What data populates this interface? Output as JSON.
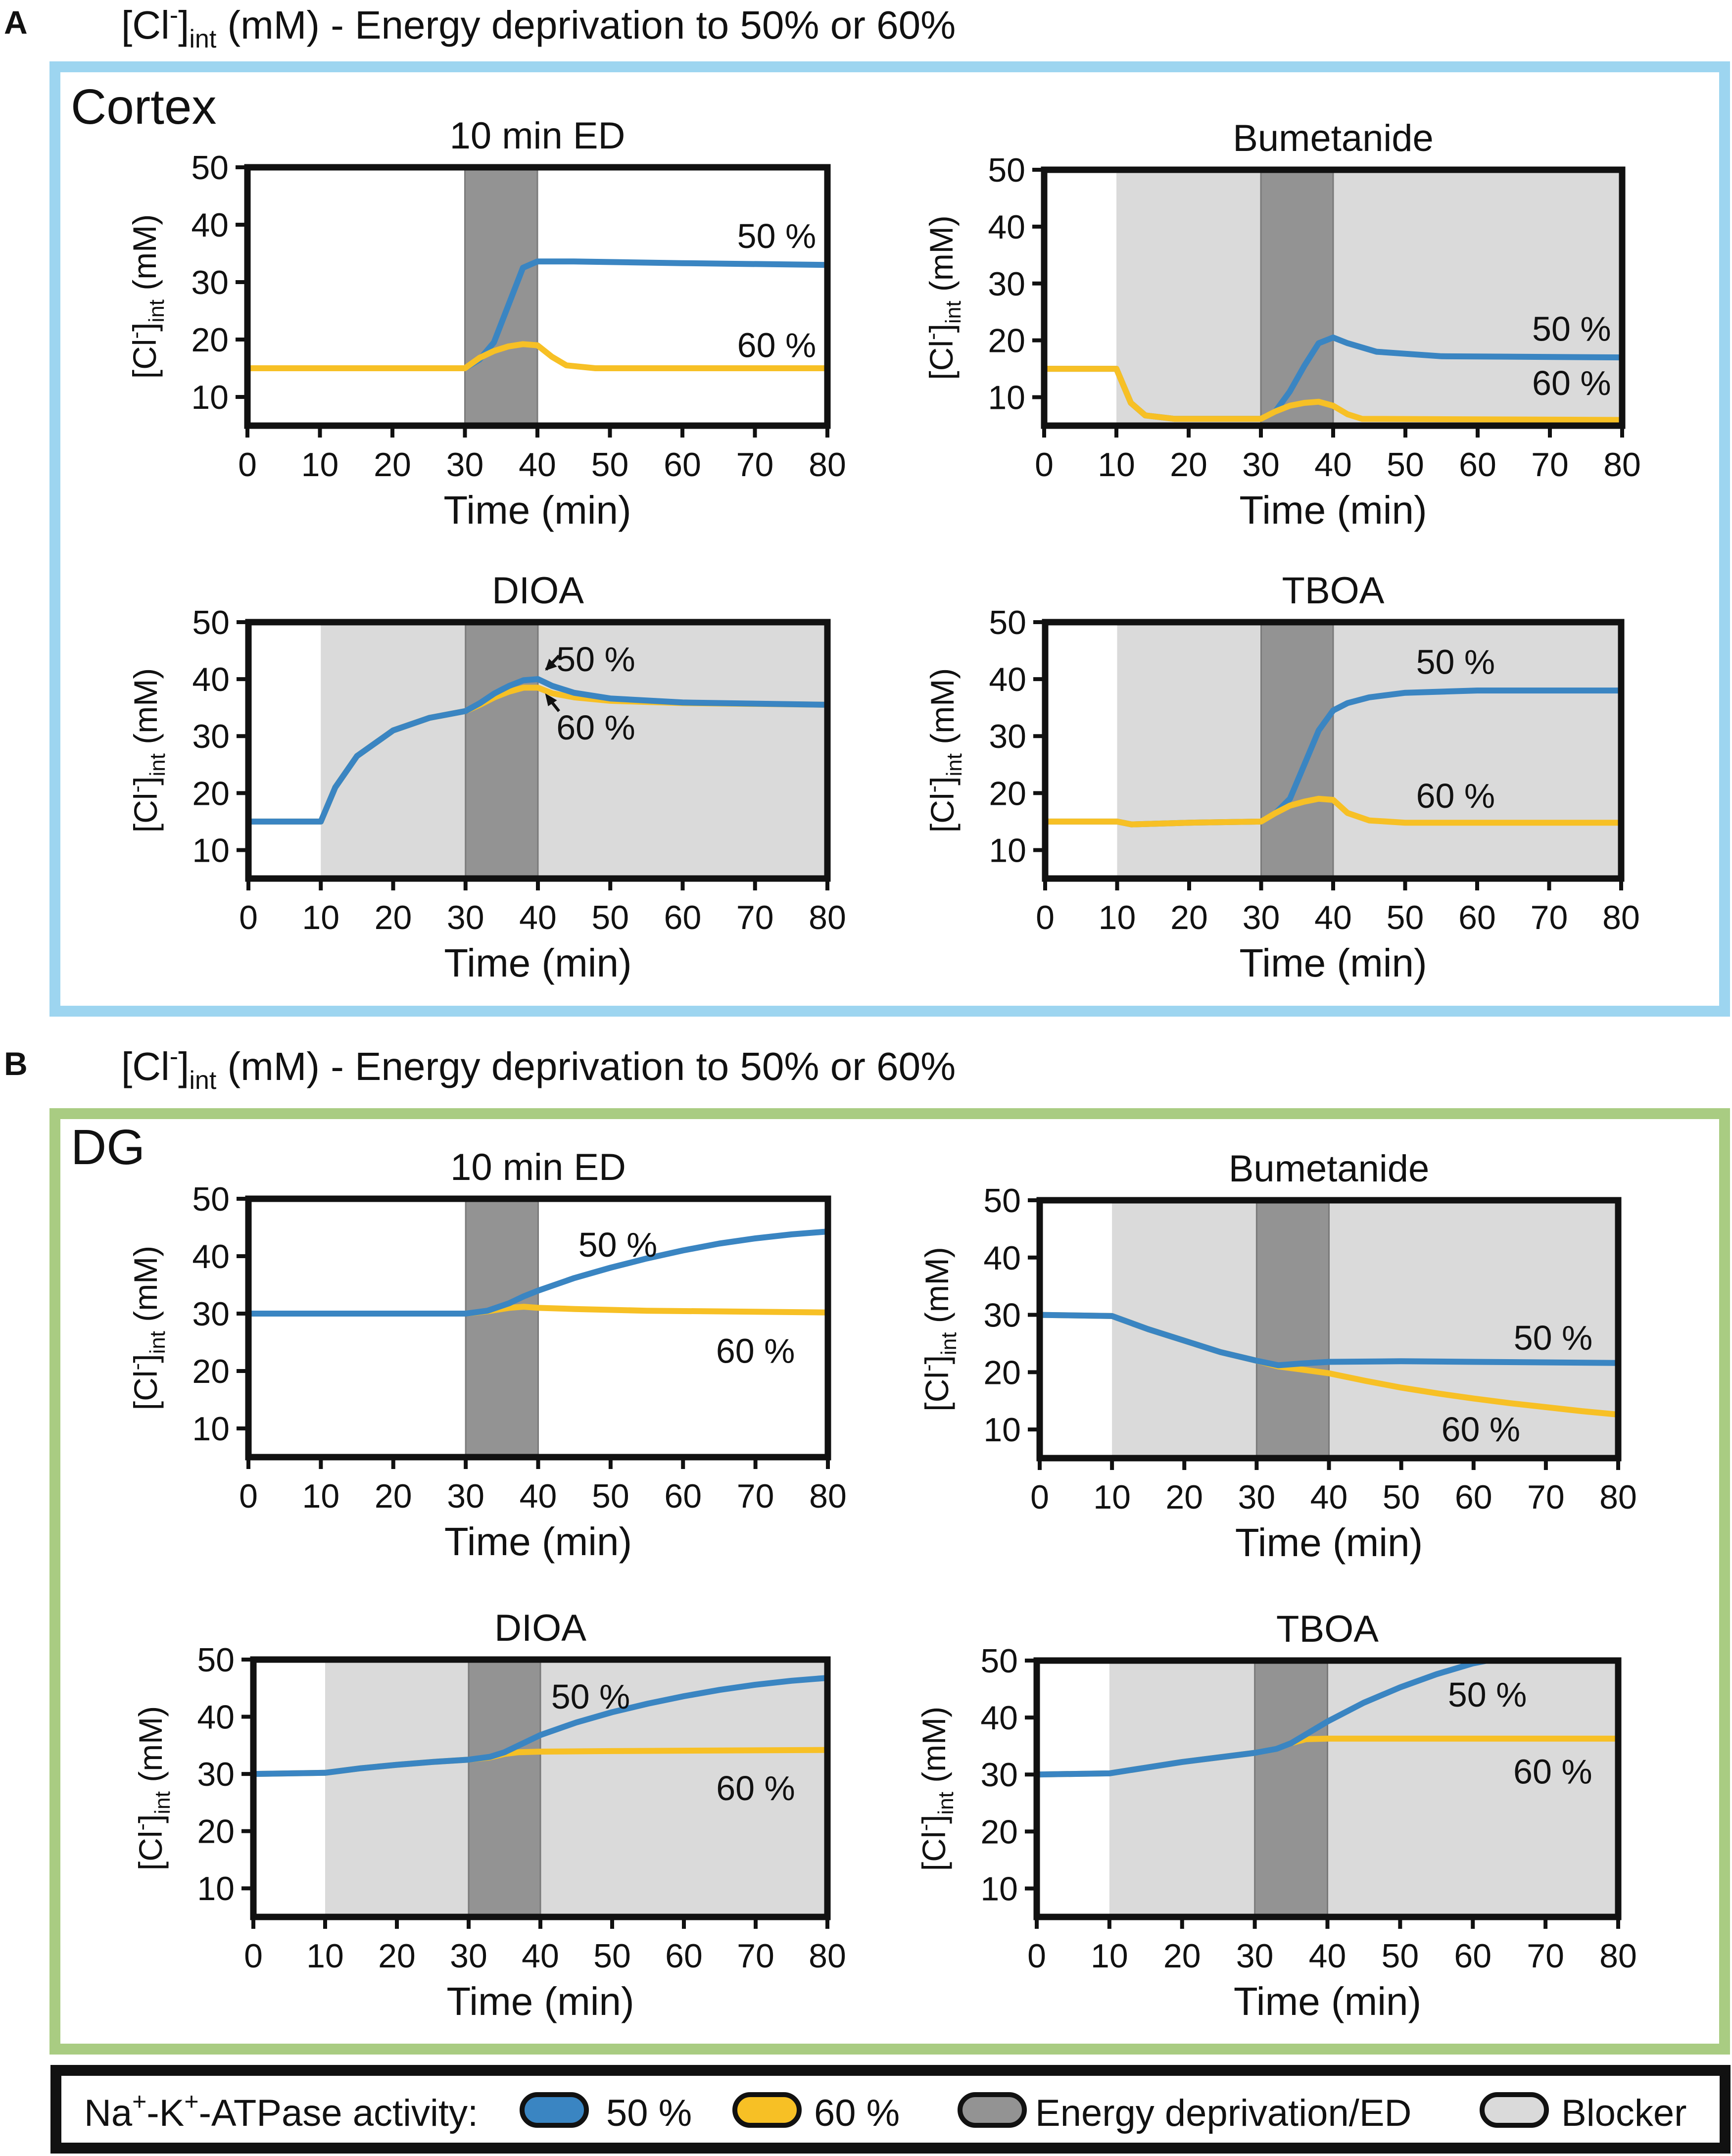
{
  "panels": [
    {
      "letter": "A",
      "title_pre": "[Cl",
      "title_sup": "-",
      "title_sub": "int",
      "title_post": " (mM) - Energy deprivation to 50% or 60%",
      "region": "Cortex",
      "frame_color": "#9dd5f0"
    },
    {
      "letter": "B",
      "title_pre": "[Cl",
      "title_sup": "-",
      "title_sub": "int",
      "title_post": " (mM) - Energy deprivation to 50% or 60%",
      "region": "DG",
      "frame_color": "#a9cc82"
    }
  ],
  "legend": {
    "prefix": "Na",
    "prefix_sup1": "+",
    "prefix_mid": "-K",
    "prefix_sup2": "+",
    "prefix_post": "-ATPase activity:",
    "items": [
      {
        "label": "50 %",
        "color": "#3a85c2"
      },
      {
        "label": "60 %",
        "color": "#f7c025"
      },
      {
        "label": "Energy deprivation/ED",
        "color": "#939393"
      },
      {
        "label": "Blocker",
        "color": "#dadada"
      }
    ]
  },
  "chart_data": [
    {
      "type": "line",
      "panel": "A",
      "title": "10 min ED",
      "xlabel": "Time (min)",
      "ylabel": "[Cl-]int (mM)",
      "xlim": [
        0,
        80
      ],
      "ylim": [
        5,
        50
      ],
      "xticks": [
        0,
        10,
        20,
        30,
        40,
        50,
        60,
        70,
        80
      ],
      "yticks": [
        10,
        20,
        30,
        40,
        50
      ],
      "ed": [
        30,
        40
      ],
      "blocker": null,
      "series": [
        {
          "name": "50 %",
          "color": "#3a85c2",
          "x": [
            0,
            30,
            32,
            34,
            36,
            38,
            40,
            45,
            60,
            80
          ],
          "y": [
            15,
            15,
            16.5,
            19.5,
            26,
            32.5,
            33.6,
            33.6,
            33.3,
            33
          ]
        },
        {
          "name": "60 %",
          "color": "#f7c025",
          "x": [
            0,
            30,
            32,
            34,
            36,
            38,
            40,
            42,
            44,
            48,
            80
          ],
          "y": [
            15,
            15,
            16.8,
            18,
            18.8,
            19.2,
            19,
            17,
            15.5,
            15,
            15
          ]
        }
      ],
      "annotations": [
        {
          "text": "50 %",
          "x": 73,
          "y": 38
        },
        {
          "text": "60 %",
          "x": 73,
          "y": 19
        }
      ]
    },
    {
      "type": "line",
      "panel": "A",
      "title": "Bumetanide",
      "xlabel": "Time (min)",
      "ylabel": "[Cl-]int (mM)",
      "xlim": [
        0,
        80
      ],
      "ylim": [
        5,
        50
      ],
      "xticks": [
        0,
        10,
        20,
        30,
        40,
        50,
        60,
        70,
        80
      ],
      "yticks": [
        10,
        20,
        30,
        40,
        50
      ],
      "ed": [
        30,
        40
      ],
      "blocker": [
        10,
        80
      ],
      "series": [
        {
          "name": "50 %",
          "color": "#3a85c2",
          "x": [
            0,
            10,
            11,
            12,
            14,
            18,
            30,
            32,
            34,
            36,
            38,
            40,
            42,
            46,
            55,
            80
          ],
          "y": [
            15,
            15,
            12,
            9,
            6.8,
            6.2,
            6.2,
            7.5,
            11,
            15.5,
            19.5,
            20.5,
            19.5,
            18,
            17.2,
            17
          ]
        },
        {
          "name": "60 %",
          "color": "#f7c025",
          "x": [
            0,
            10,
            11,
            12,
            14,
            18,
            30,
            32,
            34,
            36,
            38,
            40,
            42,
            44,
            80
          ],
          "y": [
            15,
            15,
            12,
            9,
            6.8,
            6.2,
            6.2,
            7.5,
            8.5,
            9,
            9.2,
            8.5,
            7,
            6.2,
            6
          ]
        }
      ],
      "annotations": [
        {
          "text": "50 %",
          "x": 73,
          "y": 22
        },
        {
          "text": "60 %",
          "x": 73,
          "y": 12.5
        }
      ]
    },
    {
      "type": "line",
      "panel": "A",
      "title": "DIOA",
      "xlabel": "Time (min)",
      "ylabel": "[Cl-]int (mM)",
      "xlim": [
        0,
        80
      ],
      "ylim": [
        5,
        50
      ],
      "xticks": [
        0,
        10,
        20,
        30,
        40,
        50,
        60,
        70,
        80
      ],
      "yticks": [
        10,
        20,
        30,
        40,
        50
      ],
      "ed": [
        30,
        40
      ],
      "blocker": [
        10,
        80
      ],
      "series": [
        {
          "name": "60 %",
          "color": "#f7c025",
          "x": [
            0,
            10,
            12,
            15,
            20,
            25,
            30,
            32,
            34,
            36,
            38,
            40,
            42,
            45,
            50,
            60,
            80
          ],
          "y": [
            15,
            15,
            21,
            26.5,
            31,
            33.2,
            34.4,
            35.5,
            36.8,
            37.8,
            38.5,
            38.5,
            37.5,
            36.8,
            36.2,
            35.8,
            35.5
          ]
        },
        {
          "name": "50 %",
          "color": "#3a85c2",
          "x": [
            0,
            10,
            12,
            15,
            20,
            25,
            30,
            32,
            34,
            36,
            38,
            40,
            42,
            45,
            50,
            60,
            80
          ],
          "y": [
            15,
            15,
            21,
            26.5,
            31,
            33.2,
            34.4,
            35.8,
            37.5,
            38.8,
            39.8,
            40,
            38.8,
            37.6,
            36.6,
            35.9,
            35.5
          ]
        }
      ],
      "annotations": [
        {
          "text": "50 %",
          "x": 48,
          "y": 43.5
        },
        {
          "text": "60 %",
          "x": 48,
          "y": 31.5
        }
      ]
    },
    {
      "type": "line",
      "panel": "A",
      "title": "TBOA",
      "xlabel": "Time (min)",
      "ylabel": "[Cl-]int (mM)",
      "xlim": [
        0,
        80
      ],
      "ylim": [
        5,
        50
      ],
      "xticks": [
        0,
        10,
        20,
        30,
        40,
        50,
        60,
        70,
        80
      ],
      "yticks": [
        10,
        20,
        30,
        40,
        50
      ],
      "ed": [
        30,
        40
      ],
      "blocker": [
        10,
        80
      ],
      "series": [
        {
          "name": "50 %",
          "color": "#3a85c2",
          "x": [
            0,
            10,
            12,
            20,
            30,
            32,
            34,
            36,
            38,
            40,
            42,
            45,
            50,
            60,
            80
          ],
          "y": [
            15,
            15,
            14.5,
            14.8,
            15,
            16.5,
            19,
            25,
            31,
            34.5,
            35.8,
            36.8,
            37.6,
            38,
            38
          ]
        },
        {
          "name": "60 %",
          "color": "#f7c025",
          "x": [
            0,
            10,
            12,
            20,
            30,
            32,
            34,
            36,
            38,
            40,
            42,
            45,
            50,
            80
          ],
          "y": [
            15,
            15,
            14.5,
            14.8,
            15,
            16.5,
            17.8,
            18.5,
            19,
            18.8,
            16.5,
            15.2,
            14.8,
            14.8
          ]
        }
      ],
      "annotations": [
        {
          "text": "50 %",
          "x": 57,
          "y": 43
        },
        {
          "text": "60 %",
          "x": 57,
          "y": 19.5
        }
      ]
    },
    {
      "type": "line",
      "panel": "B",
      "title": "10 min ED",
      "xlabel": "Time (min)",
      "ylabel": "[Cl-]int (mM)",
      "xlim": [
        0,
        80
      ],
      "ylim": [
        5,
        50
      ],
      "xticks": [
        0,
        10,
        20,
        30,
        40,
        50,
        60,
        70,
        80
      ],
      "yticks": [
        10,
        20,
        30,
        40,
        50
      ],
      "ed": [
        30,
        40
      ],
      "blocker": null,
      "series": [
        {
          "name": "60 %",
          "color": "#f7c025",
          "x": [
            0,
            30,
            33,
            36,
            38,
            40,
            45,
            55,
            80
          ],
          "y": [
            30,
            30,
            30.4,
            31,
            31.2,
            31,
            30.8,
            30.5,
            30.2
          ]
        },
        {
          "name": "50 %",
          "color": "#3a85c2",
          "x": [
            0,
            30,
            33,
            36,
            38,
            40,
            45,
            50,
            55,
            60,
            65,
            70,
            75,
            80
          ],
          "y": [
            30,
            30,
            30.5,
            31.8,
            33,
            34,
            36.2,
            38,
            39.6,
            41,
            42.2,
            43.1,
            43.8,
            44.3
          ]
        }
      ],
      "annotations": [
        {
          "text": "50 %",
          "x": 51,
          "y": 42
        },
        {
          "text": "60 %",
          "x": 70,
          "y": 23.5
        }
      ]
    },
    {
      "type": "line",
      "panel": "B",
      "title": "Bumetanide",
      "xlabel": "Time (min)",
      "ylabel": "[Cl-]int (mM)",
      "xlim": [
        0,
        80
      ],
      "ylim": [
        5,
        50
      ],
      "xticks": [
        0,
        10,
        20,
        30,
        40,
        50,
        60,
        70,
        80
      ],
      "yticks": [
        10,
        20,
        30,
        40,
        50
      ],
      "ed": [
        30,
        40
      ],
      "blocker": [
        10,
        80
      ],
      "series": [
        {
          "name": "60 %",
          "color": "#f7c025",
          "x": [
            0,
            10,
            15,
            20,
            25,
            30,
            33,
            36,
            40,
            45,
            50,
            55,
            60,
            65,
            70,
            75,
            80
          ],
          "y": [
            30,
            29.8,
            27.5,
            25.5,
            23.5,
            22,
            21,
            20.5,
            19.8,
            18.5,
            17.3,
            16.3,
            15.4,
            14.6,
            13.9,
            13.2,
            12.6
          ]
        },
        {
          "name": "50 %",
          "color": "#3a85c2",
          "x": [
            0,
            10,
            15,
            20,
            25,
            30,
            33,
            36,
            40,
            50,
            60,
            80
          ],
          "y": [
            30,
            29.8,
            27.5,
            25.5,
            23.5,
            22,
            21.2,
            21.5,
            21.8,
            21.9,
            21.8,
            21.6
          ]
        }
      ],
      "annotations": [
        {
          "text": "50 %",
          "x": 71,
          "y": 26
        },
        {
          "text": "60 %",
          "x": 61,
          "y": 10
        }
      ]
    },
    {
      "type": "line",
      "panel": "B",
      "title": "DIOA",
      "xlabel": "Time (min)",
      "ylabel": "[Cl-]int (mM)",
      "xlim": [
        0,
        80
      ],
      "ylim": [
        5,
        50
      ],
      "xticks": [
        0,
        10,
        20,
        30,
        40,
        50,
        60,
        70,
        80
      ],
      "yticks": [
        10,
        20,
        30,
        40,
        50
      ],
      "ed": [
        30,
        40
      ],
      "blocker": [
        10,
        80
      ],
      "series": [
        {
          "name": "60 %",
          "color": "#f7c025",
          "x": [
            0,
            10,
            15,
            20,
            25,
            30,
            33,
            35,
            37,
            40,
            50,
            80
          ],
          "y": [
            30,
            30.2,
            31,
            31.6,
            32.1,
            32.5,
            32.9,
            33.5,
            33.8,
            33.9,
            34,
            34.2
          ]
        },
        {
          "name": "50 %",
          "color": "#3a85c2",
          "x": [
            0,
            10,
            15,
            20,
            25,
            30,
            33,
            35,
            37,
            40,
            45,
            50,
            55,
            60,
            65,
            70,
            75,
            80
          ],
          "y": [
            30,
            30.2,
            31,
            31.6,
            32.1,
            32.5,
            33,
            33.8,
            35,
            36.8,
            39,
            40.8,
            42.3,
            43.6,
            44.7,
            45.6,
            46.3,
            46.8
          ]
        }
      ],
      "annotations": [
        {
          "text": "50 %",
          "x": 47,
          "y": 43.5
        },
        {
          "text": "60 %",
          "x": 70,
          "y": 27.5
        }
      ]
    },
    {
      "type": "line",
      "panel": "B",
      "title": "TBOA",
      "xlabel": "Time (min)",
      "ylabel": "[Cl-]int (mM)",
      "xlim": [
        0,
        80
      ],
      "ylim": [
        5,
        50
      ],
      "xticks": [
        0,
        10,
        20,
        30,
        40,
        50,
        60,
        70,
        80
      ],
      "yticks": [
        10,
        20,
        30,
        40,
        50
      ],
      "ed": [
        30,
        40
      ],
      "blocker": [
        10,
        80
      ],
      "series": [
        {
          "name": "60 %",
          "color": "#f7c025",
          "x": [
            0,
            10,
            15,
            20,
            25,
            30,
            33,
            35,
            37,
            40,
            50,
            80
          ],
          "y": [
            30,
            30.2,
            31.2,
            32.2,
            33,
            33.8,
            34.5,
            35.5,
            36.2,
            36.3,
            36.3,
            36.3
          ]
        },
        {
          "name": "50 %",
          "color": "#3a85c2",
          "x": [
            0,
            10,
            15,
            20,
            25,
            30,
            33,
            35,
            37,
            40,
            45,
            50,
            55,
            60,
            62
          ],
          "y": [
            30,
            30.2,
            31.2,
            32.2,
            33,
            33.8,
            34.5,
            35.5,
            37,
            39.3,
            42.6,
            45.3,
            47.6,
            49.5,
            50
          ]
        }
      ],
      "annotations": [
        {
          "text": "50 %",
          "x": 62,
          "y": 44
        },
        {
          "text": "60 %",
          "x": 71,
          "y": 30.5
        }
      ]
    }
  ]
}
